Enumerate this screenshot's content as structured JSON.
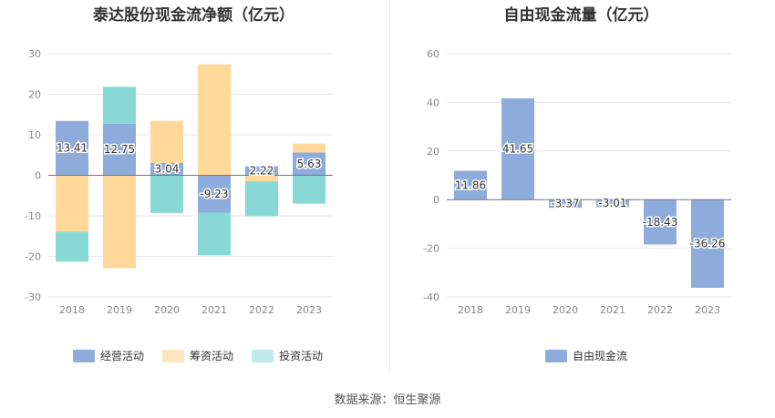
{
  "chart_data": [
    {
      "type": "bar",
      "stacked": true,
      "title": "泰达股份现金流净额（亿元）",
      "categories": [
        "2018",
        "2019",
        "2020",
        "2021",
        "2022",
        "2023"
      ],
      "ylim": [
        -30,
        30
      ],
      "yticks": [
        30,
        20,
        10,
        0,
        -10,
        -20,
        -30
      ],
      "grid": true,
      "legend_position": "bottom",
      "series": [
        {
          "name": "经营活动",
          "color": "#8eacdb",
          "values": [
            13.41,
            12.75,
            3.04,
            -9.23,
            2.22,
            5.63
          ]
        },
        {
          "name": "筹资活动",
          "color": "#ffd89a",
          "values": [
            -13.9,
            -22.9,
            10.4,
            27.4,
            -1.5,
            2.2
          ]
        },
        {
          "name": "投资活动",
          "color": "#88d8d6",
          "values": [
            -7.4,
            9.1,
            -9.3,
            -10.5,
            -8.6,
            -7.0
          ]
        }
      ],
      "data_labels": [
        "13.41",
        "12.75",
        "3.04",
        "-9.23",
        "2.22",
        "5.63"
      ],
      "legend_swatch_colors": [
        "#8eacdb",
        "#fde5bd",
        "#bfeaea"
      ]
    },
    {
      "type": "bar",
      "title": "自由现金流量（亿元）",
      "categories": [
        "2018",
        "2019",
        "2020",
        "2021",
        "2022",
        "2023"
      ],
      "ylim": [
        -40,
        60
      ],
      "yticks": [
        60,
        40,
        20,
        0,
        -20,
        -40
      ],
      "grid": true,
      "legend_position": "bottom",
      "series": [
        {
          "name": "自由现金流",
          "color": "#8eacdb",
          "values": [
            11.86,
            41.65,
            -3.37,
            -3.01,
            -18.43,
            -36.26
          ]
        }
      ],
      "data_labels": [
        "11.86",
        "41.65",
        "-3.37",
        "-3.01",
        "-18.43",
        "-36.26"
      ]
    }
  ],
  "source_text": "数据来源：恒生聚源"
}
